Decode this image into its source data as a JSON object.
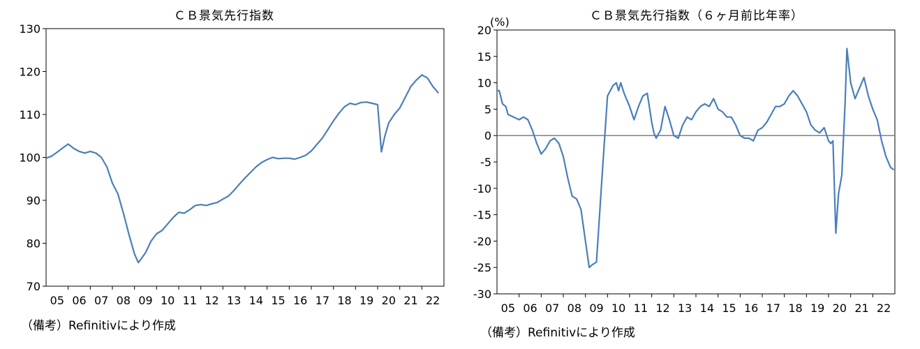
{
  "charts": [
    {
      "title": "ＣＢ景気先行指数",
      "source": "（備考）Refinitivにより作成"
    },
    {
      "title": "ＣＢ景気先行指数（６ヶ月前比年率）",
      "unit": "(%)",
      "source": "（備考）Refinitivにより作成"
    }
  ],
  "chart_data": [
    {
      "type": "line",
      "title": "ＣＢ景気先行指数",
      "xlabel": "",
      "ylabel": "",
      "x_ticks": [
        "05",
        "06",
        "07",
        "08",
        "09",
        "10",
        "11",
        "12",
        "13",
        "14",
        "15",
        "16",
        "17",
        "18",
        "19",
        "20",
        "21",
        "22"
      ],
      "xlim": [
        2005.0,
        2023.0
      ],
      "ylim": [
        70,
        130
      ],
      "y_ticks": [
        70,
        80,
        90,
        100,
        110,
        120,
        130
      ],
      "grid": false,
      "color": "#4a7ebb",
      "series": [
        {
          "x": [
            2005.0,
            2005.25,
            2005.5,
            2005.75,
            2006.0,
            2006.25,
            2006.5,
            2006.75,
            2007.0,
            2007.25,
            2007.5,
            2007.75,
            2008.0,
            2008.25,
            2008.5,
            2008.75,
            2009.0,
            2009.17,
            2009.25,
            2009.5,
            2009.75,
            2010.0,
            2010.25,
            2010.5,
            2010.75,
            2011.0,
            2011.25,
            2011.5,
            2011.75,
            2012.0,
            2012.25,
            2012.5,
            2012.75,
            2013.0,
            2013.25,
            2013.5,
            2013.75,
            2014.0,
            2014.25,
            2014.5,
            2014.75,
            2015.0,
            2015.25,
            2015.5,
            2015.75,
            2016.0,
            2016.25,
            2016.5,
            2016.75,
            2017.0,
            2017.25,
            2017.5,
            2017.75,
            2018.0,
            2018.25,
            2018.5,
            2018.75,
            2019.0,
            2019.25,
            2019.5,
            2019.75,
            2020.0,
            2020.17,
            2020.33,
            2020.5,
            2020.75,
            2021.0,
            2021.25,
            2021.5,
            2021.75,
            2022.0,
            2022.25,
            2022.5,
            2022.75
          ],
          "y": [
            99.8,
            100.3,
            101.2,
            102.2,
            103.1,
            102.1,
            101.4,
            101.0,
            101.4,
            101.0,
            100.0,
            97.8,
            94.0,
            91.5,
            87.0,
            82.0,
            77.5,
            75.5,
            76.0,
            77.8,
            80.5,
            82.2,
            83.0,
            84.5,
            86.0,
            87.2,
            87.0,
            87.8,
            88.8,
            89.0,
            88.8,
            89.2,
            89.5,
            90.3,
            91.0,
            92.3,
            93.8,
            95.2,
            96.5,
            97.8,
            98.8,
            99.5,
            100.0,
            99.7,
            99.8,
            99.8,
            99.6,
            100.0,
            100.5,
            101.5,
            103.0,
            104.5,
            106.5,
            108.5,
            110.3,
            111.8,
            112.6,
            112.3,
            112.8,
            112.9,
            112.6,
            112.3,
            101.3,
            105.0,
            108.0,
            110.0,
            111.5,
            114.0,
            116.5,
            118.0,
            119.2,
            118.5,
            116.5,
            115.0
          ]
        }
      ]
    },
    {
      "type": "line",
      "title": "ＣＢ景気先行指数（６ヶ月前比年率）",
      "xlabel": "",
      "ylabel": "(%)",
      "x_ticks": [
        "05",
        "06",
        "07",
        "08",
        "09",
        "10",
        "11",
        "12",
        "13",
        "14",
        "15",
        "16",
        "17",
        "18",
        "19",
        "20",
        "21",
        "22"
      ],
      "xlim": [
        2005.0,
        2023.0
      ],
      "ylim": [
        -30,
        20
      ],
      "y_ticks": [
        -30,
        -25,
        -20,
        -15,
        -10,
        -5,
        0,
        5,
        10,
        15,
        20
      ],
      "grid": false,
      "zero_line": true,
      "color": "#4a7ebb",
      "series": [
        {
          "x": [
            2005.0,
            2005.1,
            2005.25,
            2005.4,
            2005.5,
            2005.75,
            2006.0,
            2006.2,
            2006.4,
            2006.6,
            2006.8,
            2007.0,
            2007.2,
            2007.4,
            2007.6,
            2007.8,
            2008.0,
            2008.2,
            2008.4,
            2008.6,
            2008.8,
            2009.0,
            2009.17,
            2009.3,
            2009.5,
            2009.75,
            2010.0,
            2010.25,
            2010.4,
            2010.5,
            2010.6,
            2010.75,
            2011.0,
            2011.2,
            2011.4,
            2011.6,
            2011.8,
            2012.0,
            2012.1,
            2012.2,
            2012.4,
            2012.6,
            2012.8,
            2013.0,
            2013.2,
            2013.4,
            2013.6,
            2013.8,
            2014.0,
            2014.2,
            2014.4,
            2014.6,
            2014.8,
            2015.0,
            2015.2,
            2015.4,
            2015.6,
            2015.8,
            2016.0,
            2016.2,
            2016.4,
            2016.6,
            2016.8,
            2017.0,
            2017.2,
            2017.4,
            2017.6,
            2017.8,
            2018.0,
            2018.2,
            2018.4,
            2018.6,
            2018.8,
            2019.0,
            2019.2,
            2019.4,
            2019.6,
            2019.8,
            2020.0,
            2020.1,
            2020.2,
            2020.33,
            2020.45,
            2020.6,
            2020.75,
            2020.83,
            2021.0,
            2021.2,
            2021.4,
            2021.6,
            2021.8,
            2022.0,
            2022.2,
            2022.4,
            2022.6,
            2022.8,
            2022.95
          ],
          "y": [
            8.5,
            8.5,
            6.0,
            5.5,
            4.0,
            3.5,
            3.0,
            3.5,
            3.0,
            1.0,
            -1.5,
            -3.5,
            -2.5,
            -1.0,
            -0.5,
            -1.5,
            -4.0,
            -8.0,
            -11.5,
            -12.0,
            -14.0,
            -20.0,
            -25.0,
            -24.5,
            -24.0,
            -8.0,
            7.5,
            9.5,
            10.0,
            8.5,
            10.0,
            8.0,
            5.5,
            3.0,
            5.5,
            7.5,
            8.0,
            2.5,
            0.5,
            -0.5,
            1.0,
            5.5,
            3.0,
            0.0,
            -0.5,
            2.0,
            3.5,
            3.0,
            4.5,
            5.5,
            6.0,
            5.5,
            7.0,
            5.0,
            4.5,
            3.5,
            3.5,
            2.0,
            0.0,
            -0.5,
            -0.5,
            -1.0,
            1.0,
            1.5,
            2.5,
            4.0,
            5.5,
            5.5,
            6.0,
            7.5,
            8.5,
            7.5,
            6.0,
            4.5,
            2.0,
            1.0,
            0.5,
            1.5,
            -1.0,
            -1.5,
            -1.0,
            -18.5,
            -11.0,
            -7.5,
            6.5,
            16.5,
            10.0,
            7.0,
            9.0,
            11.0,
            7.5,
            5.0,
            3.0,
            -1.0,
            -4.0,
            -6.0,
            -6.5
          ]
        }
      ]
    }
  ]
}
